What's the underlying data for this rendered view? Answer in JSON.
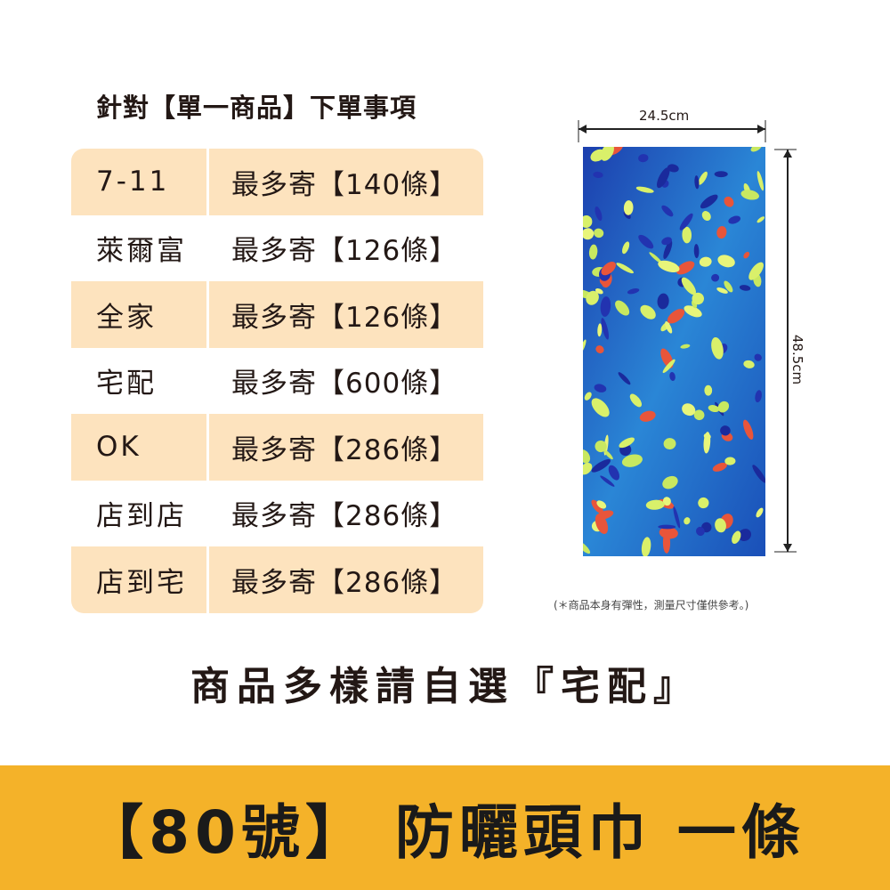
{
  "title": "針對【單一商品】下單事項",
  "shipping": [
    {
      "method": "7-11",
      "limit": "最多寄【140條】"
    },
    {
      "method": "萊爾富",
      "limit": "最多寄【126條】"
    },
    {
      "method": "全家",
      "limit": "最多寄【126條】"
    },
    {
      "method": "宅配",
      "limit": "最多寄【600條】"
    },
    {
      "method": "OK",
      "limit": "最多寄【286條】"
    },
    {
      "method": "店到店",
      "limit": "最多寄【286條】"
    },
    {
      "method": "店到宅",
      "limit": "最多寄【286條】"
    }
  ],
  "dimensions": {
    "width": "24.5cm",
    "height": "48.5cm"
  },
  "note": "(＊商品本身有彈性，測量尺寸僅供參考。)",
  "subtitle": "商品多樣請自選『宅配』",
  "banner": "【80號】 防曬頭巾 一條",
  "colors": {
    "row_highlight": "#fde3be",
    "banner": "#f4b229",
    "fabric_base": "#1f6fc4"
  }
}
